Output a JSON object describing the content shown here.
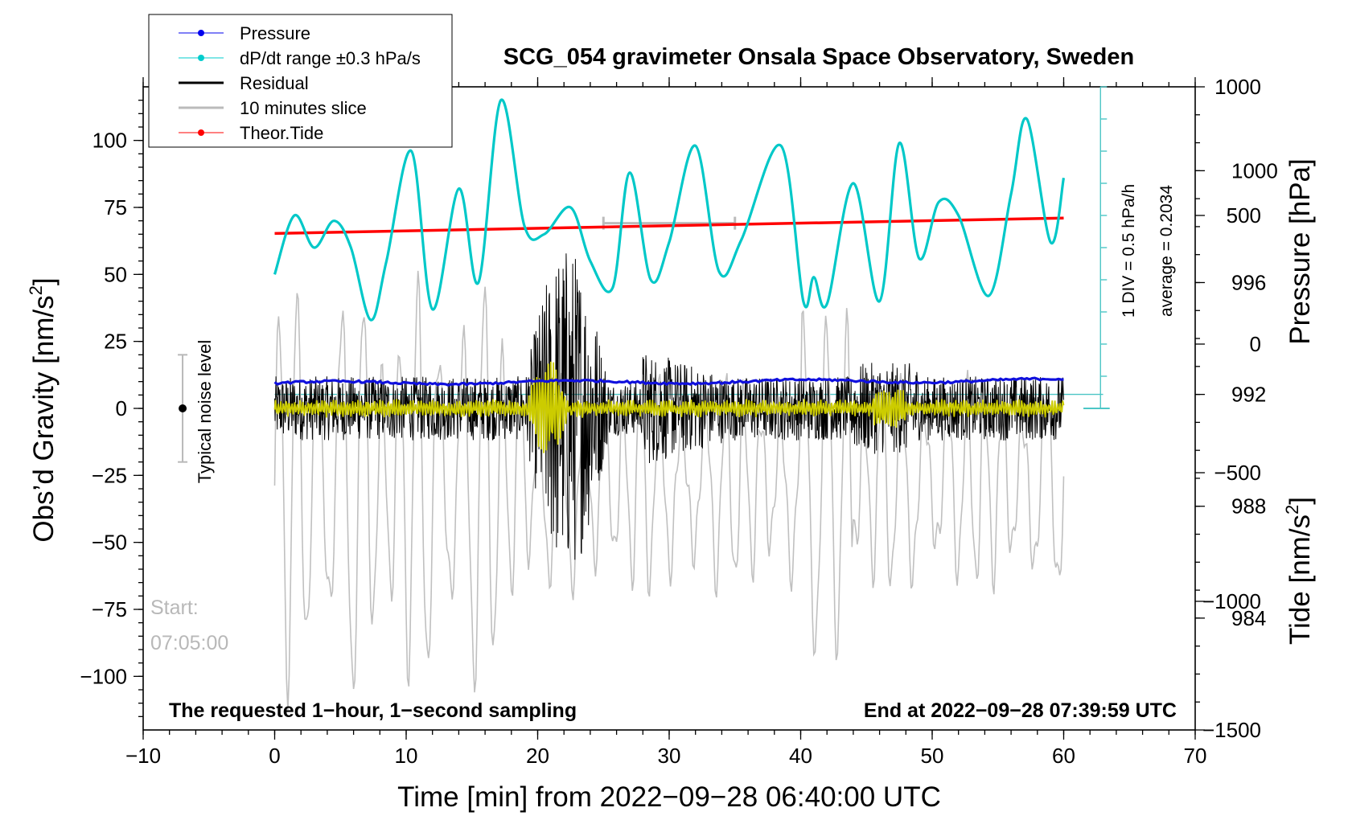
{
  "chart_data": {
    "type": "line",
    "title": "SCG_054 gravimeter Onsala Space Observatory, Sweden",
    "xlabel": "Time [min] from 2022−09−28 06:40:00 UTC",
    "ylabel_left": "Obs’d Gravity [nm/s",
    "ylabel_left_sup": "2",
    "ylabel_left_close": "]",
    "ylabel_right_top": "Pressure [hPa]",
    "ylabel_right_bottom": "Tide [nm/s",
    "ylabel_right_bottom_sup": "2",
    "ylabel_right_bottom_close": "]",
    "xlim": [
      -10,
      70
    ],
    "ylim_left": [
      -120,
      120
    ],
    "ylim_pressure": [
      980,
      1003
    ],
    "ylim_tide": [
      -1500,
      1000
    ],
    "x_ticks": [
      -10,
      0,
      10,
      20,
      30,
      40,
      50,
      60,
      70
    ],
    "x_tick_labels": [
      "−10",
      "0",
      "10",
      "20",
      "30",
      "40",
      "50",
      "60",
      "70"
    ],
    "y_left_ticks": [
      -100,
      -75,
      -50,
      -25,
      0,
      25,
      50,
      75,
      100
    ],
    "y_left_tick_labels": [
      "−100",
      "−75",
      "−50",
      "−25",
      "0",
      "25",
      "50",
      "75",
      "100"
    ],
    "y_pressure_ticks": [
      984,
      988,
      992,
      996,
      1000
    ],
    "y_pressure_tick_labels": [
      "984",
      "988",
      "992",
      "996",
      "1000"
    ],
    "y_tide_ticks": [
      -1500,
      -1000,
      -500,
      0,
      500,
      1000
    ],
    "y_tide_tick_labels": [
      "−1500",
      "−1000",
      "−500",
      "0",
      "500",
      "1000"
    ],
    "legend": [
      {
        "label": "Pressure",
        "color": "#0000ee",
        "marker": true
      },
      {
        "label": "dP/dt range ±0.3 hPa/s",
        "color": "#00cccc",
        "marker": true
      },
      {
        "label": "Residual",
        "color": "#000000",
        "marker": false
      },
      {
        "label": "10 minutes slice",
        "color": "#bbbbbb",
        "marker": false
      },
      {
        "label": "Theor.Tide",
        "color": "#ff0000",
        "marker": true
      }
    ],
    "series": [
      {
        "name": "Pressure",
        "color": "#1010dd",
        "axis": "pressure",
        "x_range": [
          0,
          60
        ],
        "start": 992.4,
        "end": 992.5
      },
      {
        "name": "dP/dt",
        "color": "#00c8c8",
        "axis": "pressure",
        "x_range": [
          0,
          60
        ],
        "x": [
          0,
          1.5,
          3,
          4.5,
          5.8,
          7.3,
          8.5,
          10.4,
          12,
          14,
          15.5,
          17.2,
          19,
          20.5,
          22.5,
          24,
          25.7,
          27,
          28.6,
          30,
          32,
          33.8,
          35.5,
          38.5,
          40.2,
          41,
          42,
          44,
          46,
          47.5,
          49,
          50.5,
          52,
          54.3,
          56,
          57.2,
          59,
          60
        ],
        "y": [
          50,
          72,
          60,
          70,
          60,
          33,
          55,
          96,
          37,
          82,
          47,
          115,
          68,
          65,
          75,
          55,
          45,
          88,
          48,
          62,
          98,
          51,
          63,
          98,
          40,
          49,
          39,
          84,
          40,
          99,
          56,
          77,
          72,
          42,
          80,
          108,
          62,
          86
        ]
      },
      {
        "name": "Average dP/dt",
        "color": "#4cc6c6",
        "axis": "pressure",
        "value": 992
      },
      {
        "name": "Residual",
        "color": "#000000",
        "axis": "left",
        "x_range": [
          0,
          60
        ],
        "noise_amplitude": 12,
        "event_window": [
          19,
          28
        ],
        "event_peak": 52
      },
      {
        "name": "Residual smoothed",
        "color": "#cccc00",
        "axis": "left",
        "x_range": [
          0,
          60
        ]
      },
      {
        "name": "Theor.Tide",
        "color": "#ff0000",
        "axis": "tide",
        "x_range": [
          0,
          60
        ],
        "start": 430,
        "end": 490
      },
      {
        "name": "10 minutes slice",
        "color": "#c0c0c0",
        "axis": "tide",
        "x_range": [
          0,
          60
        ],
        "base": -550,
        "amplitude": 480,
        "peak_amplitude": 800
      },
      {
        "name": "Slice bar",
        "color": "#bbbbbb",
        "axis": "tide",
        "x_range": [
          25,
          35
        ],
        "value": 470
      }
    ],
    "dpdt_scale": {
      "label": "1 DIV = 0.5 hPa/h",
      "average_label": "average = 0.2034",
      "divisions": 10
    },
    "noise_indicator": {
      "label": "Typical noise level",
      "x": -7,
      "center": 0,
      "range": [
        -20,
        20
      ]
    },
    "annotations": {
      "start_label": "Start:",
      "start_time": "07:05:00",
      "left_note": "The requested 1−hour, 1−second sampling",
      "right_note": "End at 2022−09−28 07:39:59 UTC"
    }
  }
}
